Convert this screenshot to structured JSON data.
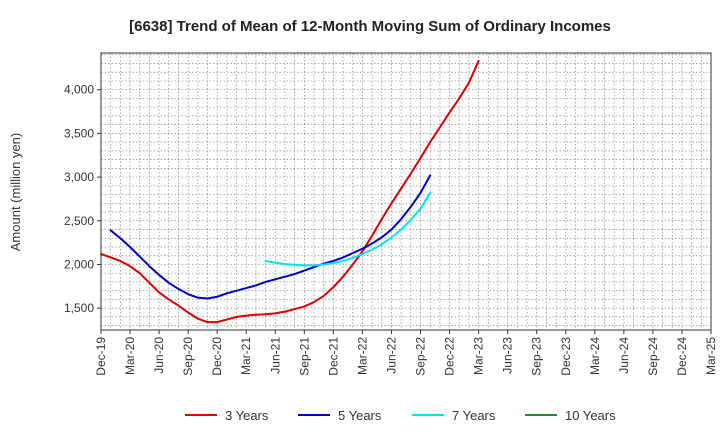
{
  "chart_data": {
    "type": "line",
    "title": "[6638]  Trend of Mean of 12-Month Moving Sum of Ordinary Incomes",
    "xlabel": "",
    "ylabel": "Amount (million yen)",
    "ylim": [
      1250,
      4420
    ],
    "yticks": [
      1500,
      2000,
      2500,
      3000,
      3500,
      4000
    ],
    "ytick_labels": [
      "1,500",
      "2,000",
      "2,500",
      "3,000",
      "3,500",
      "4,000"
    ],
    "x_tick_labels": [
      "Dec-19",
      "Mar-20",
      "Jun-20",
      "Sep-20",
      "Dec-20",
      "Mar-21",
      "Jun-21",
      "Sep-21",
      "Dec-21",
      "Mar-22",
      "Jun-22",
      "Sep-22",
      "Dec-22",
      "Mar-23",
      "Jun-23",
      "Sep-23",
      "Dec-23",
      "Mar-24",
      "Jun-24",
      "Sep-24",
      "Dec-24",
      "Mar-25"
    ],
    "grid": true,
    "legend_position": "bottom",
    "series": [
      {
        "name": "3 Years",
        "color": "#e00000",
        "points": [
          [
            0,
            2120
          ],
          [
            1,
            2080
          ],
          [
            2,
            2040
          ],
          [
            3,
            1980
          ],
          [
            4,
            1900
          ],
          [
            5,
            1790
          ],
          [
            6,
            1680
          ],
          [
            7,
            1600
          ],
          [
            8,
            1530
          ],
          [
            9,
            1450
          ],
          [
            10,
            1380
          ],
          [
            11,
            1340
          ],
          [
            12,
            1340
          ],
          [
            13,
            1370
          ],
          [
            14,
            1400
          ],
          [
            15,
            1415
          ],
          [
            16,
            1425
          ],
          [
            17,
            1430
          ],
          [
            18,
            1440
          ],
          [
            19,
            1460
          ],
          [
            20,
            1490
          ],
          [
            21,
            1520
          ],
          [
            22,
            1570
          ],
          [
            23,
            1640
          ],
          [
            24,
            1740
          ],
          [
            25,
            1860
          ],
          [
            26,
            2000
          ],
          [
            27,
            2150
          ],
          [
            28,
            2330
          ],
          [
            29,
            2520
          ],
          [
            30,
            2700
          ],
          [
            31,
            2870
          ],
          [
            32,
            3040
          ],
          [
            33,
            3220
          ],
          [
            34,
            3400
          ],
          [
            35,
            3570
          ],
          [
            36,
            3740
          ],
          [
            37,
            3900
          ],
          [
            38,
            4080
          ],
          [
            39,
            4330
          ]
        ]
      },
      {
        "name": "5 Years",
        "color": "#0000cc",
        "points": [
          [
            1,
            2390
          ],
          [
            2,
            2300
          ],
          [
            3,
            2200
          ],
          [
            4,
            2090
          ],
          [
            5,
            1980
          ],
          [
            6,
            1880
          ],
          [
            7,
            1790
          ],
          [
            8,
            1720
          ],
          [
            9,
            1660
          ],
          [
            10,
            1620
          ],
          [
            11,
            1610
          ],
          [
            12,
            1630
          ],
          [
            13,
            1670
          ],
          [
            14,
            1700
          ],
          [
            15,
            1730
          ],
          [
            16,
            1760
          ],
          [
            17,
            1800
          ],
          [
            18,
            1830
          ],
          [
            19,
            1860
          ],
          [
            20,
            1890
          ],
          [
            21,
            1930
          ],
          [
            22,
            1970
          ],
          [
            23,
            2010
          ],
          [
            24,
            2040
          ],
          [
            25,
            2080
          ],
          [
            26,
            2130
          ],
          [
            27,
            2180
          ],
          [
            28,
            2240
          ],
          [
            29,
            2310
          ],
          [
            30,
            2400
          ],
          [
            31,
            2520
          ],
          [
            32,
            2660
          ],
          [
            33,
            2820
          ],
          [
            34,
            3020
          ]
        ]
      },
      {
        "name": "7 Years",
        "color": "#00e5ee",
        "points": [
          [
            17,
            2040
          ],
          [
            18,
            2020
          ],
          [
            19,
            2005
          ],
          [
            20,
            1995
          ],
          [
            21,
            1990
          ],
          [
            22,
            1990
          ],
          [
            23,
            2000
          ],
          [
            24,
            2015
          ],
          [
            25,
            2040
          ],
          [
            26,
            2075
          ],
          [
            27,
            2120
          ],
          [
            28,
            2170
          ],
          [
            29,
            2230
          ],
          [
            30,
            2310
          ],
          [
            31,
            2400
          ],
          [
            32,
            2510
          ],
          [
            33,
            2640
          ],
          [
            34,
            2820
          ]
        ]
      },
      {
        "name": "10 Years",
        "color": "#228b22",
        "points": []
      }
    ]
  }
}
